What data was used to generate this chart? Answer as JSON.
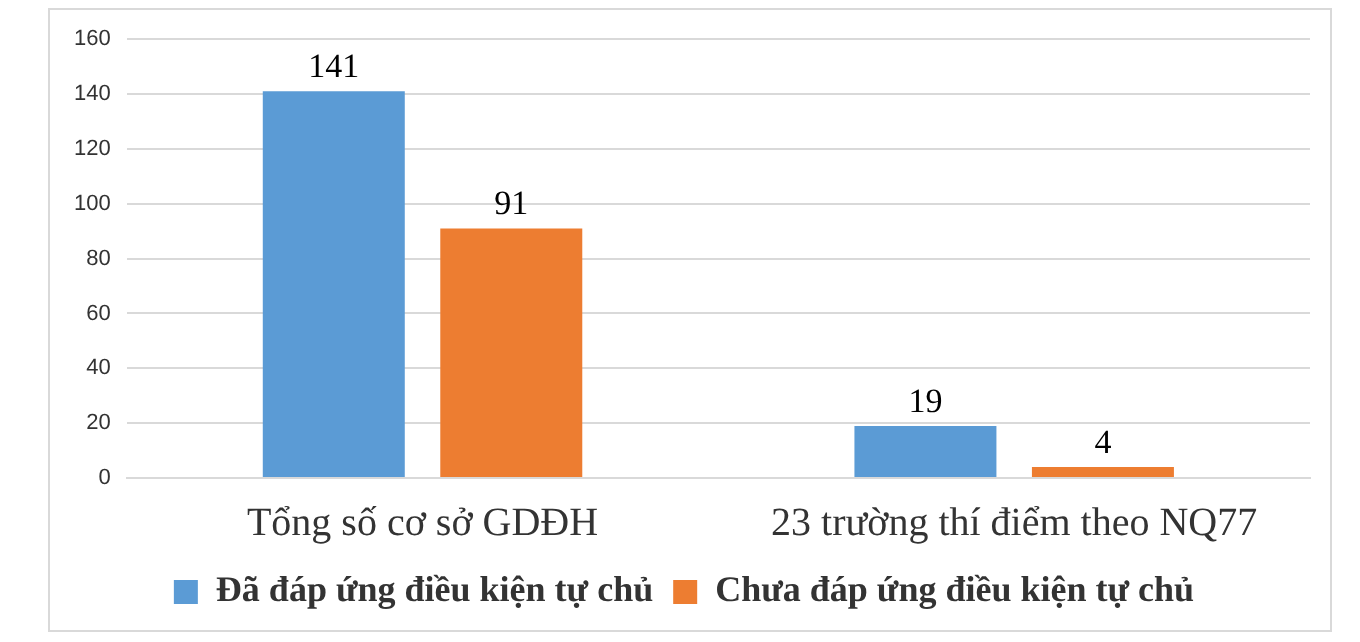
{
  "chart_data": {
    "type": "bar",
    "categories": [
      "Tổng số cơ sở GDĐH",
      "23 trường thí điểm theo NQ77"
    ],
    "series": [
      {
        "name": "Đã đáp ứng điều kiện tự chủ",
        "color": "#5b9bd5",
        "values": [
          141,
          19
        ]
      },
      {
        "name": "Chưa đáp ứng điều kiện tự chủ",
        "color": "#ed7d31",
        "values": [
          91,
          4
        ]
      }
    ],
    "ylim": [
      0,
      160
    ],
    "yticks": [
      0,
      20,
      40,
      60,
      80,
      100,
      120,
      140,
      160
    ],
    "grid": "y",
    "legend": "bottom",
    "data_labels": true
  }
}
